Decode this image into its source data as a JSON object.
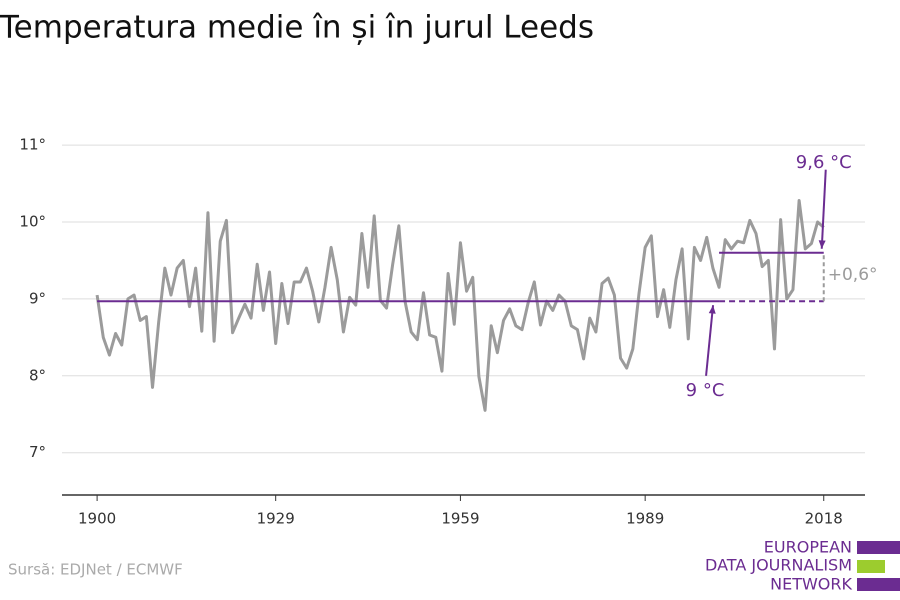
{
  "chart_data": {
    "type": "line",
    "title": "Temperatura medie în și în jurul Leeds",
    "source": "Sursă: EDJNet / ECMWF",
    "logo": [
      "EUROPEAN",
      "DATA JOURNALISM",
      "NETWORK"
    ],
    "x": [
      1900,
      1901,
      1902,
      1903,
      1904,
      1905,
      1906,
      1907,
      1908,
      1909,
      1910,
      1911,
      1912,
      1913,
      1914,
      1915,
      1916,
      1917,
      1918,
      1919,
      1920,
      1921,
      1922,
      1923,
      1924,
      1925,
      1926,
      1927,
      1928,
      1929,
      1930,
      1931,
      1932,
      1933,
      1934,
      1935,
      1936,
      1937,
      1938,
      1939,
      1940,
      1941,
      1942,
      1943,
      1944,
      1945,
      1946,
      1947,
      1948,
      1949,
      1950,
      1951,
      1952,
      1953,
      1954,
      1955,
      1956,
      1957,
      1958,
      1959,
      1960,
      1961,
      1962,
      1963,
      1964,
      1965,
      1966,
      1967,
      1968,
      1969,
      1970,
      1971,
      1972,
      1973,
      1974,
      1975,
      1976,
      1977,
      1978,
      1979,
      1980,
      1981,
      1982,
      1983,
      1984,
      1985,
      1986,
      1987,
      1988,
      1989,
      1990,
      1991,
      1992,
      1993,
      1994,
      1995,
      1996,
      1997,
      1998,
      1999,
      2000,
      2001,
      2002,
      2003,
      2004,
      2005,
      2006,
      2007,
      2008,
      2009,
      2010,
      2011,
      2012,
      2013,
      2014,
      2015,
      2016,
      2017,
      2018
    ],
    "series": [
      {
        "color": "#9b9b9b",
        "values": [
          9.05,
          8.5,
          8.27,
          8.55,
          8.4,
          9.0,
          9.05,
          8.72,
          8.77,
          7.85,
          8.7,
          9.4,
          9.05,
          9.4,
          9.5,
          8.9,
          9.4,
          8.58,
          10.12,
          8.45,
          9.75,
          10.02,
          8.56,
          8.75,
          8.93,
          8.75,
          9.45,
          8.85,
          9.35,
          8.42,
          9.2,
          8.68,
          9.22,
          9.22,
          9.4,
          9.1,
          8.7,
          9.15,
          9.67,
          9.25,
          8.57,
          9.02,
          8.92,
          9.85,
          9.15,
          10.08,
          8.98,
          8.88,
          9.45,
          9.95,
          8.97,
          8.57,
          8.47,
          9.08,
          8.53,
          8.5,
          8.06,
          9.33,
          8.67,
          9.73,
          9.1,
          9.28,
          7.99,
          7.55,
          8.65,
          8.3,
          8.72,
          8.87,
          8.65,
          8.6,
          8.95,
          9.22,
          8.66,
          8.97,
          8.85,
          9.05,
          8.97,
          8.65,
          8.6,
          8.22,
          8.75,
          8.57,
          9.2,
          9.27,
          9.05,
          8.23,
          8.1,
          8.35,
          9.07,
          9.67,
          9.82,
          8.77,
          9.12,
          8.63,
          9.25,
          9.65,
          8.48,
          9.67,
          9.5,
          9.8,
          9.4,
          9.15,
          9.77,
          9.65,
          9.75,
          9.73,
          10.02,
          9.85,
          9.42,
          9.5,
          8.35,
          10.03,
          9.0,
          9.12,
          10.28,
          9.65,
          9.72,
          10.0,
          9.93
        ]
      }
    ],
    "reference_lines": [
      {
        "value": 8.97,
        "label": "9 °C",
        "xlim": [
          1900,
          2018
        ],
        "dashed_from": 2001,
        "color": "#6b2c91"
      },
      {
        "value": 9.6,
        "label": "9,6 °C",
        "xlim": [
          2001,
          2018
        ],
        "color": "#6b2c91"
      }
    ],
    "difference": {
      "value": 0.63,
      "label": "+0,6°",
      "color": "#9b9b9b"
    },
    "xlim": [
      1894.3,
      2024.7
    ],
    "xticks": [
      1900,
      1929,
      1959,
      1989,
      2018
    ],
    "ylim": [
      6.45,
      11.3
    ],
    "yticks": [
      {
        "value": 7,
        "label": "7°"
      },
      {
        "value": 8,
        "label": "8°"
      },
      {
        "value": 9,
        "label": "9°"
      },
      {
        "value": 10,
        "label": "10°"
      },
      {
        "value": 11,
        "label": "11°"
      }
    ],
    "grid": true
  }
}
